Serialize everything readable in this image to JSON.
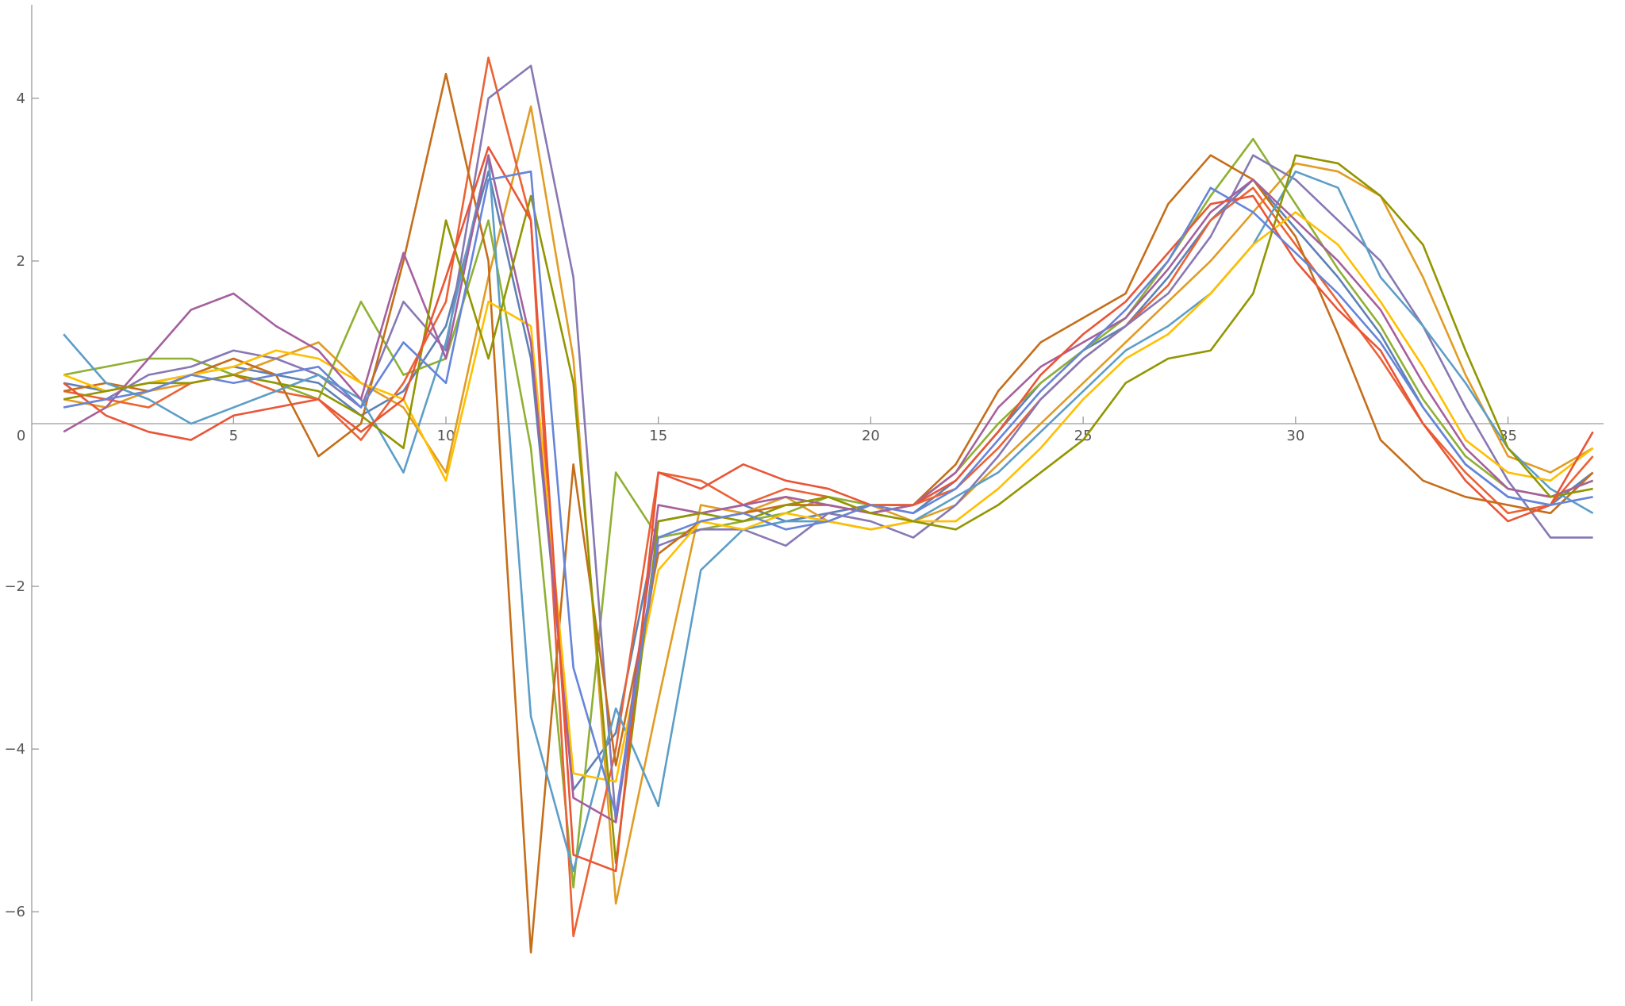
{
  "chart_data": {
    "type": "line",
    "x": [
      1,
      2,
      3,
      4,
      5,
      6,
      7,
      8,
      9,
      10,
      11,
      12,
      13,
      14,
      15,
      16,
      17,
      18,
      19,
      20,
      21,
      22,
      23,
      24,
      25,
      26,
      27,
      28,
      29,
      30,
      31,
      32,
      33,
      34,
      35,
      36,
      37
    ],
    "xlim": [
      0.25,
      37.25
    ],
    "ylim": [
      -7.1,
      5.15
    ],
    "xticks": [
      0,
      5,
      10,
      15,
      20,
      25,
      30,
      35
    ],
    "yticks": [
      {
        "value": -6,
        "label": "−6"
      },
      {
        "value": -4,
        "label": "−4"
      },
      {
        "value": -2,
        "label": "−2"
      },
      2,
      4
    ],
    "series": [
      {
        "color": "#5E81B5",
        "values": [
          0.5,
          0.4,
          0.5,
          0.6,
          0.7,
          0.6,
          0.5,
          0.1,
          0.4,
          1.2,
          3.1,
          0.8,
          -4.5,
          -3.8,
          -1.2,
          -1.1,
          -1.0,
          -1.2,
          -1.1,
          -1.0,
          -1.1,
          -0.7,
          -0.1,
          0.5,
          0.9,
          1.2,
          1.8,
          2.5,
          3.0,
          2.4,
          1.8,
          1.1,
          0.2,
          -0.5,
          -0.9,
          -1.0,
          -0.6
        ]
      },
      {
        "color": "#E19C24",
        "values": [
          0.3,
          0.2,
          0.4,
          0.5,
          0.6,
          0.8,
          1.0,
          0.5,
          0.2,
          -0.6,
          1.8,
          3.9,
          0.8,
          -5.9,
          -3.4,
          -1.0,
          -1.1,
          -0.9,
          -1.2,
          -1.0,
          -1.2,
          -1.0,
          -0.5,
          0.0,
          0.5,
          1.0,
          1.5,
          2.0,
          2.6,
          3.2,
          3.1,
          2.8,
          1.8,
          0.6,
          -0.4,
          -0.6,
          -0.3
        ]
      },
      {
        "color": "#8FB032",
        "values": [
          0.6,
          0.7,
          0.8,
          0.8,
          0.6,
          0.5,
          0.3,
          1.5,
          0.6,
          0.8,
          2.5,
          -0.3,
          -5.7,
          -0.6,
          -1.4,
          -1.3,
          -1.2,
          -1.1,
          -0.9,
          -1.0,
          -1.0,
          -0.6,
          0.0,
          0.5,
          0.9,
          1.3,
          2.0,
          2.8,
          3.5,
          2.7,
          1.9,
          1.2,
          0.3,
          -0.4,
          -0.8,
          -0.9,
          -0.7
        ]
      },
      {
        "color": "#EB6235",
        "values": [
          0.4,
          0.3,
          0.2,
          0.5,
          0.6,
          0.4,
          0.3,
          -0.2,
          0.5,
          1.5,
          4.5,
          2.5,
          -6.3,
          -4.0,
          -0.6,
          -0.7,
          -1.0,
          -0.8,
          -0.9,
          -1.1,
          -1.0,
          -0.8,
          -0.3,
          0.3,
          0.8,
          1.2,
          1.7,
          2.5,
          2.9,
          2.2,
          1.5,
          0.8,
          0.0,
          -0.6,
          -1.1,
          -1.0,
          -0.4
        ]
      },
      {
        "color": "#8778B3",
        "values": [
          0.2,
          0.3,
          0.6,
          0.7,
          0.9,
          0.8,
          0.6,
          0.2,
          1.5,
          0.9,
          4.0,
          4.4,
          1.8,
          -4.9,
          -1.5,
          -1.3,
          -1.3,
          -1.5,
          -1.1,
          -1.2,
          -1.4,
          -1.0,
          -0.4,
          0.3,
          0.8,
          1.2,
          1.6,
          2.3,
          3.3,
          3.0,
          2.5,
          2.0,
          1.2,
          0.2,
          -0.7,
          -1.4,
          -1.4
        ]
      },
      {
        "color": "#C56E1A",
        "values": [
          0.4,
          0.5,
          0.4,
          0.6,
          0.8,
          0.6,
          -0.4,
          0.0,
          2.0,
          4.3,
          2.0,
          -6.5,
          -0.5,
          -4.2,
          -1.6,
          -1.2,
          -1.1,
          -1.0,
          -1.0,
          -1.1,
          -1.0,
          -0.5,
          0.4,
          1.0,
          1.3,
          1.6,
          2.7,
          3.3,
          3.0,
          2.3,
          1.1,
          -0.2,
          -0.7,
          -0.9,
          -1.0,
          -1.1,
          -0.6
        ]
      },
      {
        "color": "#5D9EC7",
        "values": [
          1.1,
          0.5,
          0.3,
          0.0,
          0.2,
          0.4,
          0.6,
          0.3,
          -0.6,
          1.0,
          3.3,
          -3.6,
          -5.5,
          -3.5,
          -4.7,
          -1.8,
          -1.3,
          -1.2,
          -1.2,
          -1.3,
          -1.2,
          -0.9,
          -0.6,
          -0.1,
          0.4,
          0.9,
          1.2,
          1.6,
          2.2,
          3.1,
          2.9,
          1.8,
          1.2,
          0.5,
          -0.3,
          -0.8,
          -1.1
        ]
      },
      {
        "color": "#FFBF00",
        "values": [
          0.6,
          0.4,
          0.5,
          0.6,
          0.7,
          0.9,
          0.8,
          0.5,
          0.3,
          -0.7,
          1.5,
          1.2,
          -4.3,
          -4.4,
          -1.8,
          -1.2,
          -1.3,
          -1.1,
          -1.2,
          -1.3,
          -1.2,
          -1.2,
          -0.8,
          -0.3,
          0.3,
          0.8,
          1.1,
          1.6,
          2.2,
          2.6,
          2.2,
          1.5,
          0.7,
          -0.2,
          -0.6,
          -0.7,
          -0.3
        ]
      },
      {
        "color": "#A5609D",
        "values": [
          -0.1,
          0.2,
          0.8,
          1.4,
          1.6,
          1.2,
          0.9,
          0.3,
          2.1,
          0.8,
          3.3,
          1.0,
          -4.6,
          -4.9,
          -1.0,
          -1.1,
          -1.0,
          -0.9,
          -1.0,
          -1.1,
          -1.0,
          -0.6,
          0.2,
          0.7,
          1.0,
          1.3,
          1.9,
          2.6,
          3.0,
          2.5,
          2.0,
          1.4,
          0.5,
          -0.3,
          -0.8,
          -0.9,
          -0.7
        ]
      },
      {
        "color": "#929600",
        "values": [
          0.3,
          0.4,
          0.5,
          0.5,
          0.6,
          0.5,
          0.4,
          0.1,
          -0.3,
          2.5,
          0.8,
          2.8,
          0.5,
          -5.4,
          -1.2,
          -1.1,
          -1.2,
          -1.0,
          -0.9,
          -1.1,
          -1.2,
          -1.3,
          -1.0,
          -0.6,
          -0.2,
          0.5,
          0.8,
          0.9,
          1.6,
          3.3,
          3.2,
          2.8,
          2.2,
          0.9,
          -0.3,
          -0.9,
          -0.8
        ]
      },
      {
        "color": "#E95536",
        "values": [
          0.5,
          0.1,
          -0.1,
          -0.2,
          0.1,
          0.2,
          0.3,
          -0.1,
          0.3,
          1.8,
          3.4,
          2.5,
          -5.3,
          -5.5,
          -0.6,
          -0.8,
          -0.5,
          -0.7,
          -0.8,
          -1.0,
          -1.0,
          -0.7,
          -0.1,
          0.6,
          1.1,
          1.5,
          2.1,
          2.7,
          2.8,
          2.0,
          1.4,
          0.9,
          0.0,
          -0.7,
          -1.2,
          -1.0,
          -0.1
        ]
      },
      {
        "color": "#6685D9",
        "values": [
          0.2,
          0.3,
          0.4,
          0.6,
          0.5,
          0.6,
          0.7,
          0.2,
          1.0,
          0.5,
          3.0,
          3.1,
          -3.0,
          -4.8,
          -1.4,
          -1.2,
          -1.1,
          -1.3,
          -1.2,
          -1.0,
          -1.1,
          -0.8,
          -0.2,
          0.4,
          0.9,
          1.4,
          2.0,
          2.9,
          2.6,
          2.1,
          1.6,
          1.0,
          0.2,
          -0.5,
          -0.9,
          -1.0,
          -0.9
        ]
      }
    ]
  }
}
